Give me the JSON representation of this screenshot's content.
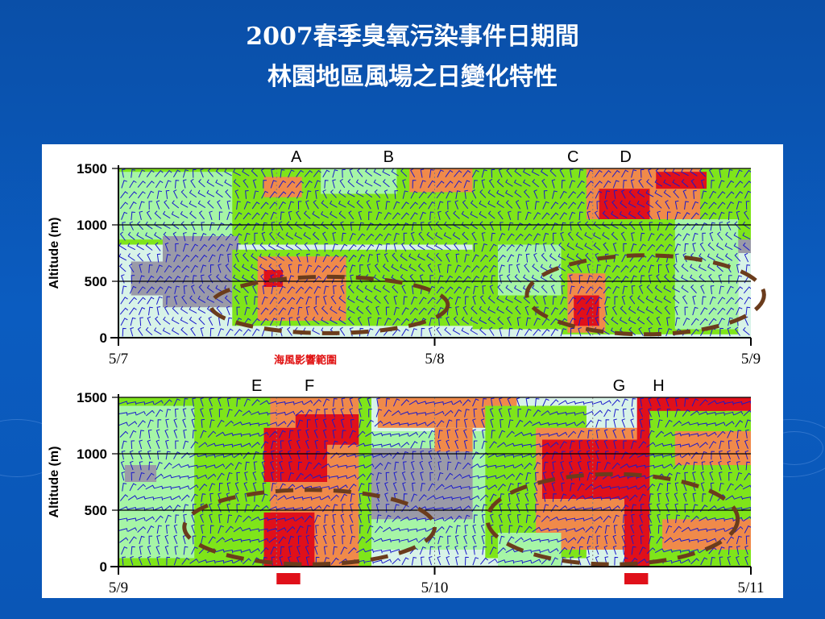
{
  "title": {
    "line1": "2007春季臭氧污染事件日期間",
    "line2": "林園地區風場之日變化特性"
  },
  "colors": {
    "background": "#0b5cc0",
    "green": "#7fe51a",
    "light_green": "#a6f5a6",
    "pale": "#d8f3e8",
    "gray": "#9a9aa8",
    "orange": "#f08a4a",
    "red": "#e0101a",
    "dashed_ellipse": "#6b3c1c",
    "barb": "#1a1acc"
  },
  "chart_data": [
    {
      "type": "heatmap",
      "ylabel": "Altitude (m)",
      "ylim": [
        0,
        1500
      ],
      "y_ticks": [
        "1500",
        "1000",
        "500",
        "0"
      ],
      "x_ticks": [
        "5/7",
        "5/8",
        "5/9"
      ],
      "xlim": [
        0,
        48
      ],
      "event_markers": [
        {
          "label": "A",
          "x": 13.5
        },
        {
          "label": "B",
          "x": 20.5
        },
        {
          "label": "C",
          "x": 34.5
        },
        {
          "label": "D",
          "x": 38.5
        }
      ],
      "annotation": "海風影響範圍",
      "ellipses": [
        {
          "x_center": 16,
          "x_radius": 9,
          "y_center": 290,
          "y_radius": 250
        },
        {
          "x_center": 40,
          "x_radius": 9,
          "y_center": 380,
          "y_radius": 350
        }
      ],
      "red_bars": []
    },
    {
      "type": "heatmap",
      "ylabel": "Altitude (m)",
      "ylim": [
        0,
        1500
      ],
      "y_ticks": [
        "1500",
        "1000",
        "500",
        "0"
      ],
      "x_ticks": [
        "5/9",
        "5/10",
        "5/11"
      ],
      "xlim": [
        0,
        48
      ],
      "event_markers": [
        {
          "label": "E",
          "x": 10.5
        },
        {
          "label": "F",
          "x": 14.5
        },
        {
          "label": "G",
          "x": 38.0
        },
        {
          "label": "H",
          "x": 41.0
        }
      ],
      "annotation": "",
      "ellipses": [
        {
          "x_center": 14.5,
          "x_radius": 9.5,
          "y_center": 350,
          "y_radius": 330
        },
        {
          "x_center": 37.5,
          "x_radius": 9.5,
          "y_center": 420,
          "y_radius": 400
        }
      ],
      "red_bars": [
        {
          "x_start": 12.0,
          "x_end": 13.8
        },
        {
          "x_start": 38.4,
          "x_end": 40.2
        }
      ]
    }
  ]
}
